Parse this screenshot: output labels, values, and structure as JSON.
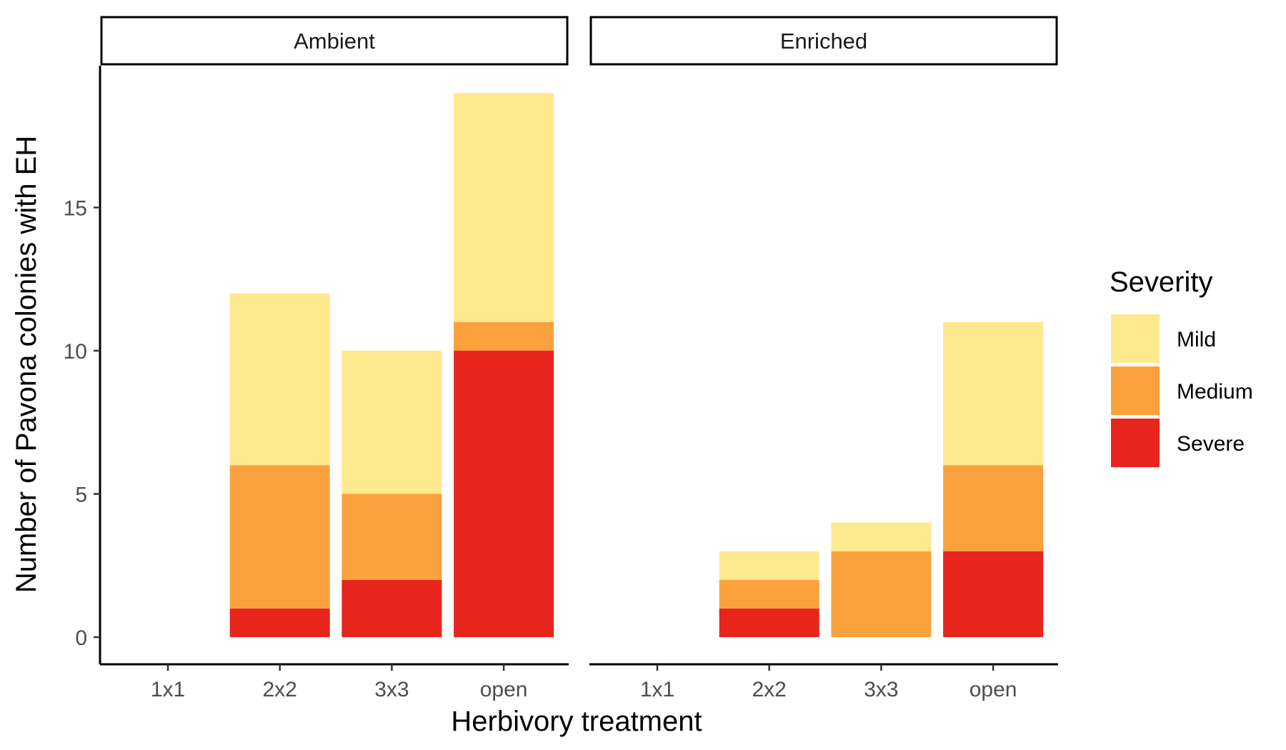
{
  "chart_data": {
    "type": "bar",
    "stacked": true,
    "xlabel": "Herbivory treatment",
    "ylabel": "Number of Pavona colonies with EH",
    "ylim": [
      0,
      21
    ],
    "yticks": [
      0,
      5,
      10,
      15
    ],
    "categories": [
      "1x1",
      "2x2",
      "3x3",
      "open"
    ],
    "legend": {
      "title": "Severity",
      "position": "right",
      "entries": [
        "Mild",
        "Medium",
        "Severe"
      ]
    },
    "colors": {
      "Mild": "#FEE98F",
      "Medium": "#F9A23D",
      "Severe": "#E8251C"
    },
    "stack_order": [
      "Severe",
      "Medium",
      "Mild"
    ],
    "panels": [
      {
        "strip": "Ambient",
        "series": [
          {
            "name": "Severe",
            "values": [
              0,
              1,
              2,
              10
            ]
          },
          {
            "name": "Medium",
            "values": [
              0,
              5,
              3,
              1
            ]
          },
          {
            "name": "Mild",
            "values": [
              0,
              6,
              5,
              8
            ]
          }
        ]
      },
      {
        "strip": "Enriched",
        "series": [
          {
            "name": "Severe",
            "values": [
              0,
              1,
              0,
              3
            ]
          },
          {
            "name": "Medium",
            "values": [
              0,
              1,
              3,
              3
            ]
          },
          {
            "name": "Mild",
            "values": [
              0,
              1,
              1,
              5
            ]
          }
        ]
      }
    ]
  }
}
